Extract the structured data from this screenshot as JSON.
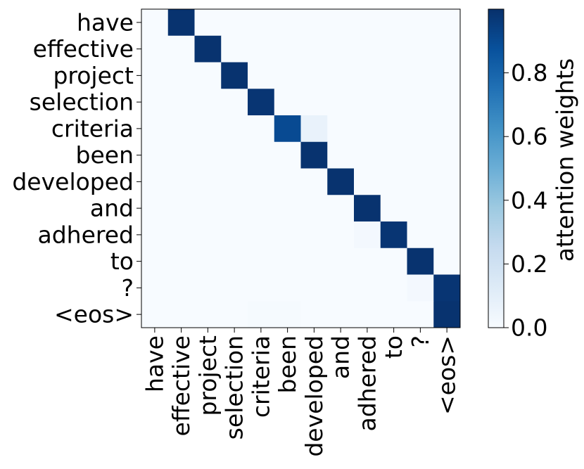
{
  "chart_data": {
    "type": "heatmap",
    "x_labels": [
      "have",
      "effective",
      "project",
      "selection",
      "criteria",
      "been",
      "developed",
      "and",
      "adhered",
      "to",
      "?",
      "<eos>"
    ],
    "y_labels": [
      "have",
      "effective",
      "project",
      "selection",
      "criteria",
      "been",
      "developed",
      "and",
      "adhered",
      "to",
      "?",
      "<eos>"
    ],
    "values": [
      [
        0.0,
        0.99,
        0.0,
        0.0,
        0.0,
        0.0,
        0.0,
        0.0,
        0.0,
        0.0,
        0.0,
        0.0
      ],
      [
        0.0,
        0.0,
        0.99,
        0.0,
        0.0,
        0.0,
        0.0,
        0.0,
        0.0,
        0.0,
        0.0,
        0.0
      ],
      [
        0.0,
        0.0,
        0.0,
        0.99,
        0.0,
        0.0,
        0.0,
        0.0,
        0.0,
        0.0,
        0.0,
        0.0
      ],
      [
        0.0,
        0.0,
        0.0,
        0.0,
        0.98,
        0.0,
        0.0,
        0.0,
        0.0,
        0.0,
        0.0,
        0.0
      ],
      [
        0.0,
        0.0,
        0.0,
        0.0,
        0.0,
        0.9,
        0.07,
        0.0,
        0.0,
        0.0,
        0.0,
        0.0
      ],
      [
        0.0,
        0.0,
        0.0,
        0.0,
        0.0,
        0.0,
        0.99,
        0.0,
        0.0,
        0.0,
        0.0,
        0.0
      ],
      [
        0.0,
        0.0,
        0.0,
        0.0,
        0.0,
        0.0,
        0.0,
        0.99,
        0.0,
        0.0,
        0.0,
        0.0
      ],
      [
        0.0,
        0.0,
        0.0,
        0.0,
        0.0,
        0.0,
        0.0,
        0.0,
        0.99,
        0.0,
        0.0,
        0.0
      ],
      [
        0.0,
        0.0,
        0.0,
        0.0,
        0.0,
        0.0,
        0.0,
        0.0,
        0.02,
        0.98,
        0.0,
        0.0
      ],
      [
        0.0,
        0.0,
        0.0,
        0.0,
        0.0,
        0.0,
        0.0,
        0.0,
        0.0,
        0.0,
        0.99,
        0.0
      ],
      [
        0.0,
        0.0,
        0.0,
        0.0,
        0.0,
        0.0,
        0.0,
        0.0,
        0.0,
        0.0,
        0.02,
        0.98
      ],
      [
        0.0,
        0.0,
        0.0,
        0.0,
        0.01,
        0.01,
        0.0,
        0.0,
        0.0,
        0.0,
        0.0,
        0.99
      ]
    ],
    "colorbar": {
      "label": "attention weights",
      "range": [
        0,
        1
      ],
      "ticks": [
        0.0,
        0.2,
        0.4,
        0.6,
        0.8
      ],
      "tick_labels": [
        "0.0",
        "0.2",
        "0.4",
        "0.6",
        "0.8"
      ]
    },
    "colormap": "Blues",
    "colormap_stops": [
      "#f7fbff",
      "#deebf7",
      "#c6dbef",
      "#9ecae1",
      "#6baed6",
      "#4292c6",
      "#2171b5",
      "#08519c",
      "#08306b"
    ]
  }
}
